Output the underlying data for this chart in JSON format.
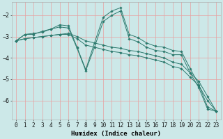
{
  "xlabel": "Humidex (Indice chaleur)",
  "ylabel": "",
  "bg_color": "#cce8e8",
  "grid_color": "#e8a0a0",
  "line_color": "#2d7a6e",
  "xlim": [
    -0.5,
    23.5
  ],
  "ylim": [
    -6.9,
    -1.4
  ],
  "yticks": [
    -6,
    -5,
    -4,
    -3,
    -2
  ],
  "xticks": [
    0,
    1,
    2,
    3,
    4,
    5,
    6,
    7,
    8,
    9,
    10,
    11,
    12,
    13,
    14,
    15,
    16,
    17,
    18,
    19,
    20,
    21,
    22,
    23
  ],
  "line1_x": [
    0,
    1,
    2,
    3,
    4,
    5,
    6,
    7,
    8,
    9,
    10,
    11,
    12,
    13,
    14,
    15,
    16,
    17,
    18,
    19,
    20,
    21,
    22,
    23
  ],
  "line1_y": [
    -3.2,
    -2.9,
    -2.9,
    -2.75,
    -2.65,
    -2.45,
    -2.5,
    -3.5,
    -4.55,
    -3.3,
    -2.1,
    -1.8,
    -1.65,
    -2.9,
    -3.05,
    -3.3,
    -3.45,
    -3.5,
    -3.65,
    -3.7,
    -4.5,
    -5.25,
    -6.3,
    -6.5
  ],
  "line2_x": [
    0,
    1,
    2,
    3,
    4,
    5,
    6,
    7,
    8,
    9,
    10,
    11,
    12,
    13,
    14,
    15,
    16,
    17,
    18,
    19,
    20,
    21,
    22,
    23
  ],
  "line2_y": [
    -3.2,
    -2.9,
    -2.85,
    -2.8,
    -2.65,
    -2.55,
    -2.6,
    -3.55,
    -4.6,
    -3.5,
    -2.3,
    -2.0,
    -1.8,
    -3.1,
    -3.25,
    -3.5,
    -3.65,
    -3.7,
    -3.85,
    -3.85,
    -4.7,
    -5.4,
    -6.4,
    -6.5
  ],
  "line3_x": [
    0,
    1,
    2,
    3,
    4,
    5,
    6,
    7,
    8,
    9,
    10,
    11,
    12,
    13,
    14,
    15,
    16,
    17,
    18,
    19,
    20,
    21,
    22,
    23
  ],
  "line3_y": [
    -3.2,
    -3.1,
    -3.05,
    -3.0,
    -2.95,
    -2.9,
    -2.9,
    -3.1,
    -3.4,
    -3.5,
    -3.6,
    -3.7,
    -3.75,
    -3.85,
    -3.9,
    -4.0,
    -4.1,
    -4.2,
    -4.4,
    -4.5,
    -4.9,
    -5.3,
    -6.0,
    -6.5
  ],
  "line4_x": [
    0,
    1,
    2,
    3,
    4,
    5,
    6,
    7,
    8,
    9,
    10,
    11,
    12,
    13,
    14,
    15,
    16,
    17,
    18,
    19,
    20,
    21,
    22,
    23
  ],
  "line4_y": [
    -3.2,
    -3.1,
    -3.05,
    -3.0,
    -2.95,
    -2.9,
    -2.85,
    -3.0,
    -3.2,
    -3.3,
    -3.4,
    -3.5,
    -3.55,
    -3.65,
    -3.7,
    -3.8,
    -3.9,
    -4.0,
    -4.2,
    -4.3,
    -4.7,
    -5.1,
    -5.8,
    -6.5
  ],
  "font_family": "monospace",
  "tick_fontsize": 5.5,
  "xlabel_fontsize": 6.5,
  "lw": 0.7,
  "ms": 1.8
}
